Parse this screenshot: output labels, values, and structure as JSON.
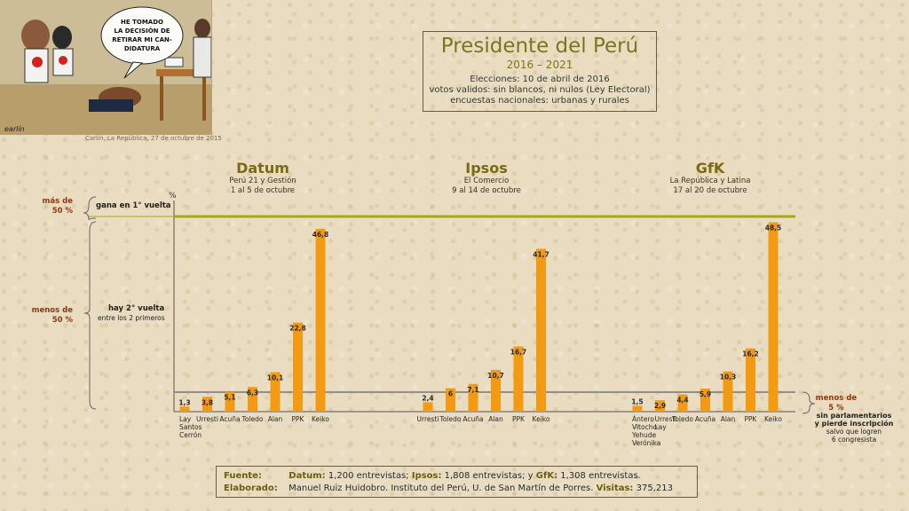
{
  "cartoon": {
    "speech": [
      "HE TOMADO",
      "LA DECISIÓN DE",
      "RETIRAR MI CAN-",
      "DIDATURA"
    ],
    "credit": "Carlín, La República, 27 de octubre de 2015"
  },
  "title": {
    "main": "Presidente del Perú",
    "years": "2016 – 2021",
    "line1": "Elecciones: 10 de abril de 2016",
    "line2": "votos validos: sin blancos, ni nulos (Ley Electoral)",
    "line3": "encuestas nacionales: urbanas y rurales"
  },
  "pollsters": [
    {
      "name": "Datum",
      "source": "Perú 21 y Gestión",
      "dates": "1 al 5 de octubre"
    },
    {
      "name": "Ipsos",
      "source": "El Comercio",
      "dates": "9 al 14 de octubre"
    },
    {
      "name": "GfK",
      "source": "La República y Latina",
      "dates": "17 al 20 de octubre"
    }
  ],
  "side": {
    "mas50": [
      "más de",
      "50 %"
    ],
    "gana": "gana en 1° vuelta",
    "menos50": [
      "menos de",
      "50 %"
    ],
    "hay2": "hay 2° vuelta",
    "entre": "entre los 2 primeros",
    "menos5": [
      "menos de",
      "5 %"
    ],
    "sin_parl": [
      "sin parlamentarios",
      "y pierde inscripción"
    ],
    "salvo": [
      "salvo que logren",
      "6 congresista"
    ]
  },
  "chart_data": {
    "type": "bar",
    "ylabel": "%",
    "threshold_high": 50,
    "threshold_low": 5,
    "colors": {
      "bar": "#f39a12",
      "high_line": "#a8a815",
      "low_line": "#8f8f8f"
    },
    "groups": [
      {
        "name": "Datum",
        "categories": [
          "Lay Santos Cerrón",
          "Urresti",
          "Acuña",
          "Toledo",
          "Alan",
          "PPK",
          "Keiko"
        ],
        "values": [
          1.3,
          3.8,
          5.1,
          6.3,
          10.1,
          22.8,
          46.8
        ]
      },
      {
        "name": "Ipsos",
        "categories": [
          "Urresti",
          "Toledo",
          "Acuña",
          "Alan",
          "PPK",
          "Keiko"
        ],
        "values": [
          2.4,
          6.0,
          7.1,
          10.7,
          16.7,
          41.7
        ]
      },
      {
        "name": "GfK",
        "categories": [
          "Ántero Vitocho Yehude Verónika",
          "Urresti Lay",
          "Toledo",
          "Acuña",
          "Alan",
          "PPK",
          "Keiko"
        ],
        "values": [
          1.5,
          2.9,
          4.4,
          5.9,
          10.3,
          16.2,
          48.5
        ]
      }
    ]
  },
  "footer": {
    "fuente_k": "Fuente:",
    "datum_k": "Datum:",
    "datum_v": " 1,200 entrevistas;",
    "ipsos_k": "Ipsos:",
    "ipsos_v": " 1,808 entrevistas;  y",
    "gfk_k": "GfK:",
    "gfk_v": " 1,308 entrevistas.",
    "elaborado_k": "Elaborado:",
    "elaborado_v": "Manuel Ruiz Huidobro. Instituto del Perú, U. de San Martín de Porres.",
    "visitas_k": "Visitas:",
    "visitas_v": "375,213"
  }
}
